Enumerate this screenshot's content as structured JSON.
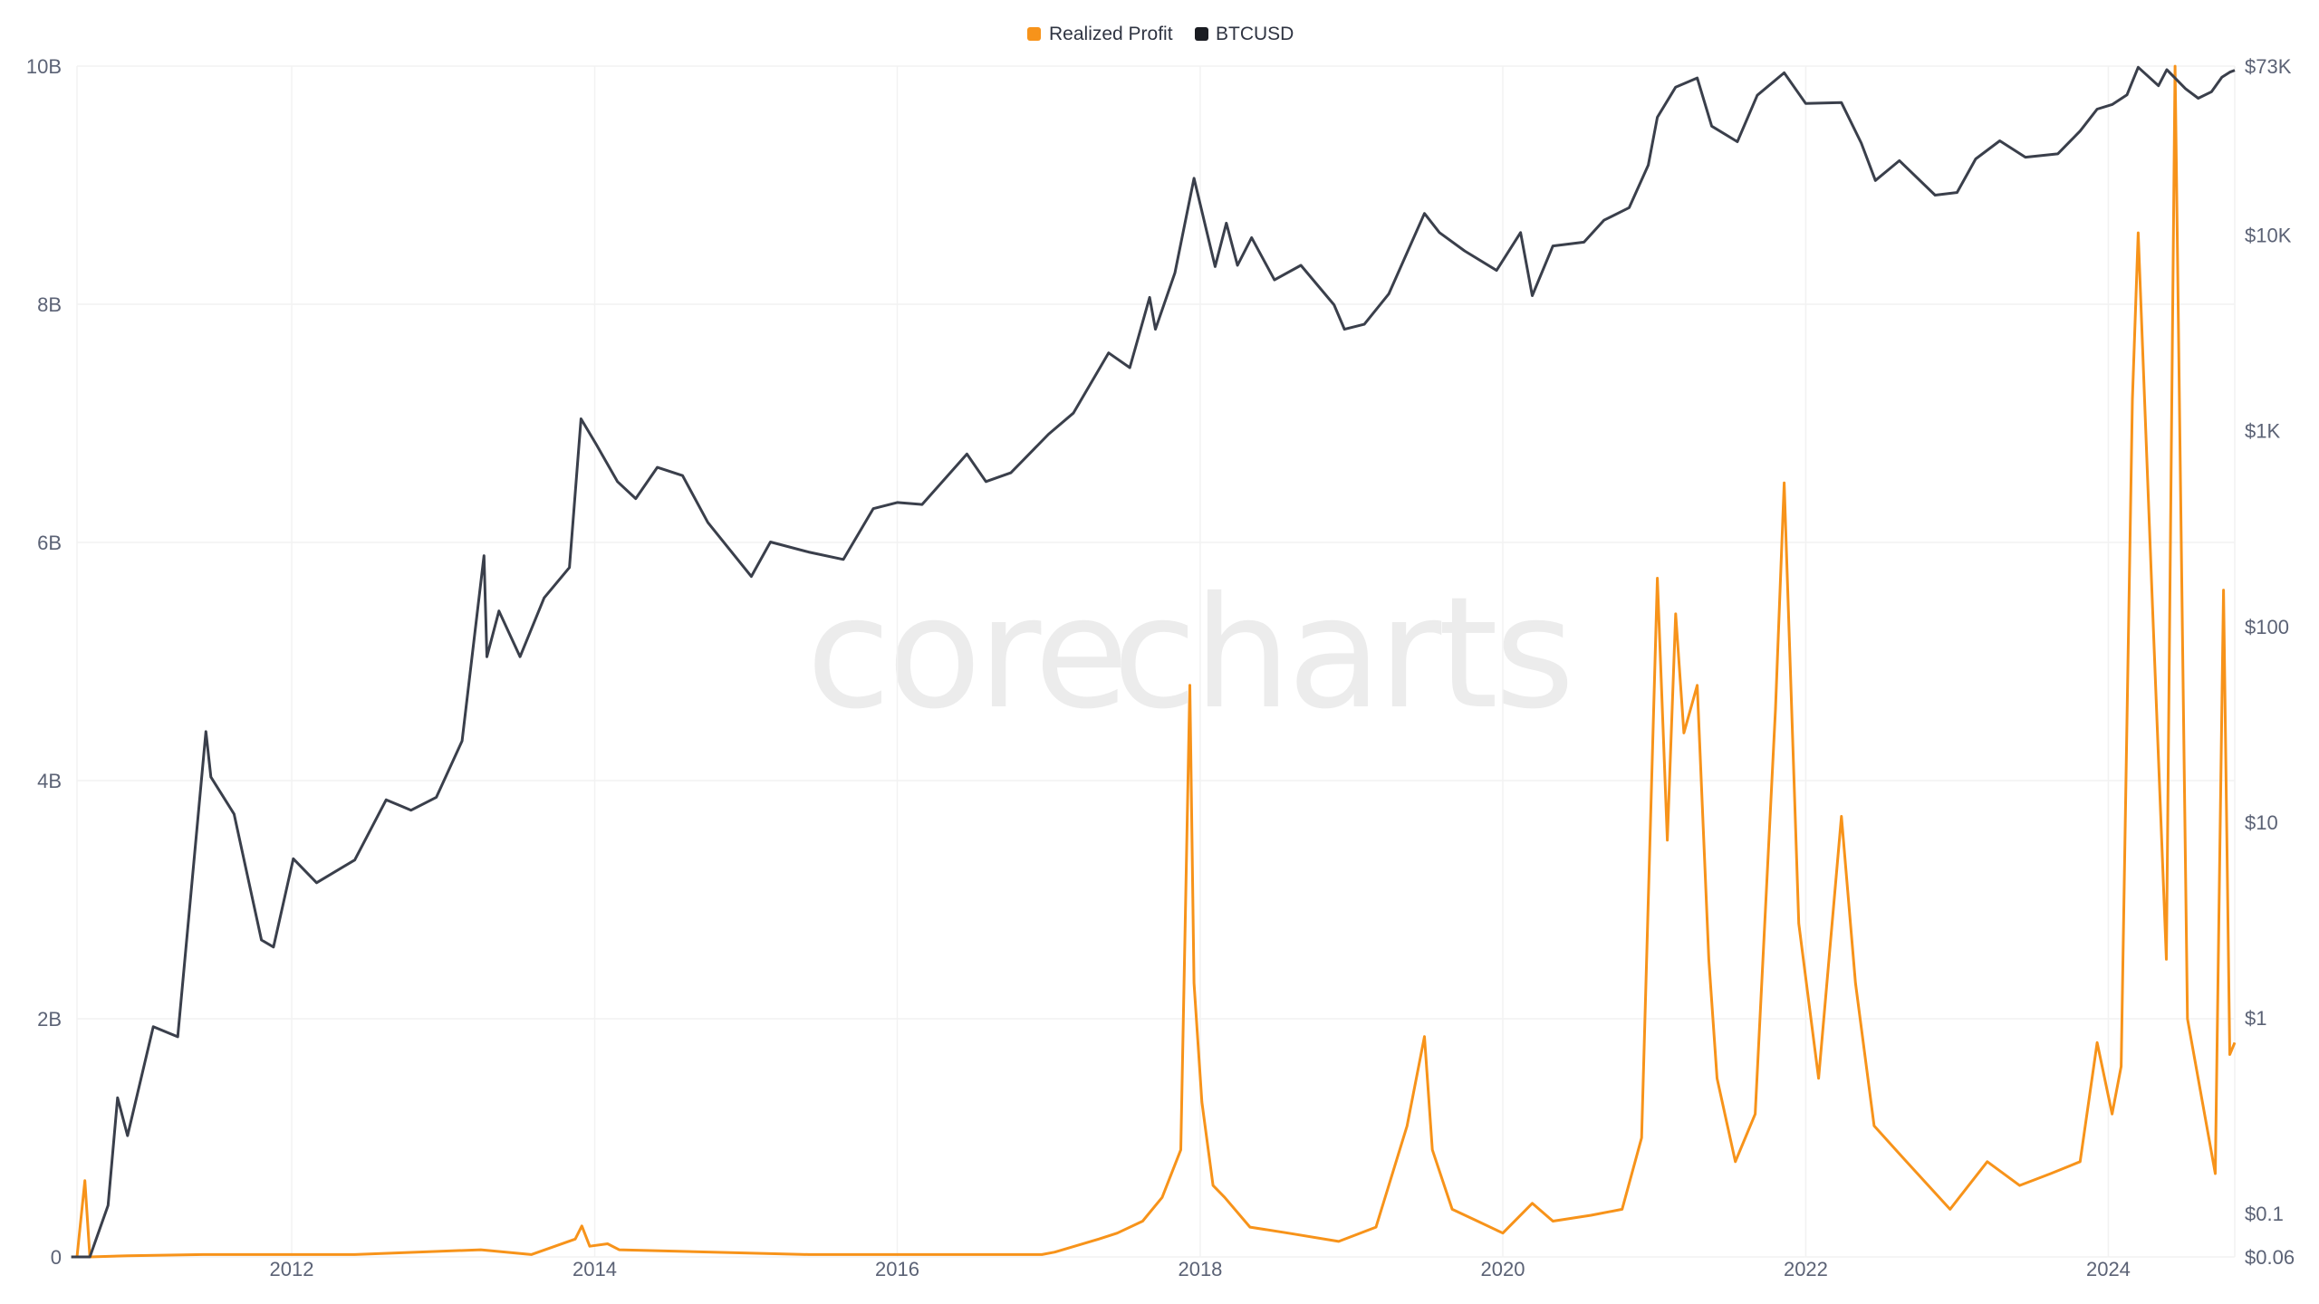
{
  "watermark": {
    "left": "core",
    "right": "charts"
  },
  "colors": {
    "realized_profit": "#f7931a",
    "btcusd": "#3a3f4b"
  },
  "chart_data": {
    "type": "line",
    "title": "",
    "x_range": [
      "2010-08-01",
      "2024-11-01"
    ],
    "x_ticks": [
      "2012",
      "2014",
      "2016",
      "2018",
      "2020",
      "2022",
      "2024"
    ],
    "legend": {
      "placement": "top-center",
      "entries": [
        "Realized Profit",
        "BTCUSD"
      ]
    },
    "y_left": {
      "label": "",
      "range": [
        0,
        10000000000
      ],
      "ticks": [
        "0",
        "2B",
        "4B",
        "6B",
        "8B",
        "10B"
      ]
    },
    "y_right": {
      "label": "",
      "scale": "log",
      "range": [
        0.06,
        73000
      ],
      "ticks": [
        "$73K",
        "$10K",
        "$1K",
        "$100",
        "$10",
        "$1",
        "$0.1",
        "$0.06"
      ]
    },
    "grid": true,
    "series": [
      {
        "name": "Realized Profit",
        "axis": "left",
        "x": [
          "2010-08-01",
          "2010-08-20",
          "2010-09-01",
          "2010-12-01",
          "2011-06-01",
          "2012-06-01",
          "2013-04-01",
          "2013-08-01",
          "2013-11-15",
          "2013-12-01",
          "2013-12-20",
          "2014-02-01",
          "2014-03-01",
          "2015-06-01",
          "2016-06-01",
          "2016-12-15",
          "2017-01-15",
          "2017-05-01",
          "2017-06-15",
          "2017-08-15",
          "2017-10-01",
          "2017-11-15",
          "2017-12-07",
          "2017-12-17",
          "2018-01-05",
          "2018-02-01",
          "2018-03-01",
          "2018-05-01",
          "2018-08-01",
          "2018-12-01",
          "2019-03-01",
          "2019-05-15",
          "2019-06-26",
          "2019-07-15",
          "2019-09-01",
          "2019-11-01",
          "2020-01-01",
          "2020-03-12",
          "2020-05-01",
          "2020-08-01",
          "2020-10-15",
          "2020-12-01",
          "2021-01-08",
          "2021-02-01",
          "2021-02-21",
          "2021-03-13",
          "2021-04-14",
          "2021-05-12",
          "2021-06-01",
          "2021-07-15",
          "2021-09-01",
          "2021-10-20",
          "2021-11-10",
          "2021-12-15",
          "2022-02-01",
          "2022-03-28",
          "2022-05-01",
          "2022-06-15",
          "2022-09-01",
          "2022-12-15",
          "2023-03-15",
          "2023-06-01",
          "2023-08-15",
          "2023-10-25",
          "2023-12-05",
          "2024-01-10",
          "2024-02-01",
          "2024-02-28",
          "2024-03-13",
          "2024-04-15",
          "2024-05-20",
          "2024-06-10",
          "2024-07-10",
          "2024-08-15",
          "2024-09-15",
          "2024-10-05",
          "2024-10-20",
          "2024-11-01"
        ],
        "y": [
          0,
          640000000,
          0,
          10000000,
          20000000,
          20000000,
          60000000,
          20000000,
          150000000,
          260000000,
          90000000,
          110000000,
          60000000,
          20000000,
          20000000,
          20000000,
          40000000,
          150000000,
          200000000,
          300000000,
          500000000,
          900000000,
          4800000000,
          2300000000,
          1300000000,
          600000000,
          500000000,
          250000000,
          200000000,
          130000000,
          250000000,
          1100000000,
          1850000000,
          900000000,
          400000000,
          300000000,
          200000000,
          450000000,
          300000000,
          350000000,
          400000000,
          1000000000,
          5700000000,
          3500000000,
          5400000000,
          4400000000,
          4800000000,
          2500000000,
          1500000000,
          800000000,
          1200000000,
          4600000000,
          6500000000,
          2800000000,
          1500000000,
          3700000000,
          2300000000,
          1100000000,
          800000000,
          400000000,
          800000000,
          600000000,
          700000000,
          800000000,
          1800000000,
          1200000000,
          1600000000,
          7200000000,
          8600000000,
          5600000000,
          2500000000,
          9999000000,
          2000000000,
          1300000000,
          700000000,
          5600000000,
          1700000000,
          1800000000
        ]
      },
      {
        "name": "BTCUSD",
        "axis": "right",
        "x": [
          "2010-07-18",
          "2010-09-01",
          "2010-10-15",
          "2010-11-07",
          "2010-12-01",
          "2011-02-01",
          "2011-04-01",
          "2011-06-08",
          "2011-06-20",
          "2011-08-15",
          "2011-10-20",
          "2011-11-18",
          "2012-01-05",
          "2012-03-01",
          "2012-06-01",
          "2012-08-16",
          "2012-10-15",
          "2012-12-15",
          "2013-02-15",
          "2013-04-09",
          "2013-04-16",
          "2013-05-15",
          "2013-07-05",
          "2013-09-01",
          "2013-11-01",
          "2013-11-29",
          "2014-01-05",
          "2014-02-25",
          "2014-04-10",
          "2014-06-01",
          "2014-08-01",
          "2014-10-01",
          "2015-01-14",
          "2015-03-01",
          "2015-06-01",
          "2015-08-24",
          "2015-11-04",
          "2016-01-01",
          "2016-03-01",
          "2016-06-17",
          "2016-08-02",
          "2016-10-01",
          "2016-12-31",
          "2017-03-01",
          "2017-05-25",
          "2017-07-15",
          "2017-09-01",
          "2017-09-15",
          "2017-11-01",
          "2017-12-17",
          "2018-02-06",
          "2018-03-05",
          "2018-04-01",
          "2018-05-05",
          "2018-06-29",
          "2018-09-01",
          "2018-11-20",
          "2018-12-15",
          "2019-02-01",
          "2019-04-01",
          "2019-06-26",
          "2019-08-01",
          "2019-10-01",
          "2019-12-17",
          "2020-02-13",
          "2020-03-12",
          "2020-05-01",
          "2020-07-15",
          "2020-09-01",
          "2020-11-01",
          "2020-12-17",
          "2021-01-08",
          "2021-02-21",
          "2021-04-14",
          "2021-05-19",
          "2021-07-20",
          "2021-09-06",
          "2021-11-10",
          "2022-01-01",
          "2022-03-28",
          "2022-05-15",
          "2022-06-18",
          "2022-08-15",
          "2022-11-09",
          "2023-01-01",
          "2023-02-15",
          "2023-04-14",
          "2023-06-15",
          "2023-09-01",
          "2023-10-25",
          "2023-12-05",
          "2024-01-11",
          "2024-02-15",
          "2024-03-13",
          "2024-05-01",
          "2024-05-21",
          "2024-07-05",
          "2024-08-05",
          "2024-09-06",
          "2024-10-01",
          "2024-10-20",
          "2024-11-01"
        ],
        "y": [
          0.05,
          0.06,
          0.11,
          0.39,
          0.25,
          0.9,
          0.8,
          29,
          17,
          11,
          2.5,
          2.3,
          6.5,
          4.9,
          6.4,
          13,
          11.5,
          13.4,
          26,
          230,
          70,
          120,
          70,
          140,
          200,
          1150,
          850,
          550,
          450,
          650,
          590,
          340,
          180,
          270,
          240,
          220,
          400,
          430,
          420,
          760,
          550,
          610,
          960,
          1230,
          2500,
          2100,
          4800,
          3300,
          6400,
          19500,
          6900,
          11500,
          7000,
          9700,
          5900,
          7000,
          4400,
          3300,
          3500,
          5000,
          12900,
          10300,
          8300,
          6600,
          10300,
          4900,
          8800,
          9200,
          11900,
          13800,
          22800,
          40000,
          57000,
          63500,
          36000,
          30000,
          51800,
          67500,
          47000,
          47500,
          29500,
          19000,
          24000,
          16000,
          16500,
          24500,
          30300,
          25000,
          26000,
          34000,
          44000,
          46500,
          52000,
          72000,
          58000,
          70000,
          56000,
          50000,
          54000,
          64000,
          68000,
          69500
        ]
      }
    ]
  }
}
